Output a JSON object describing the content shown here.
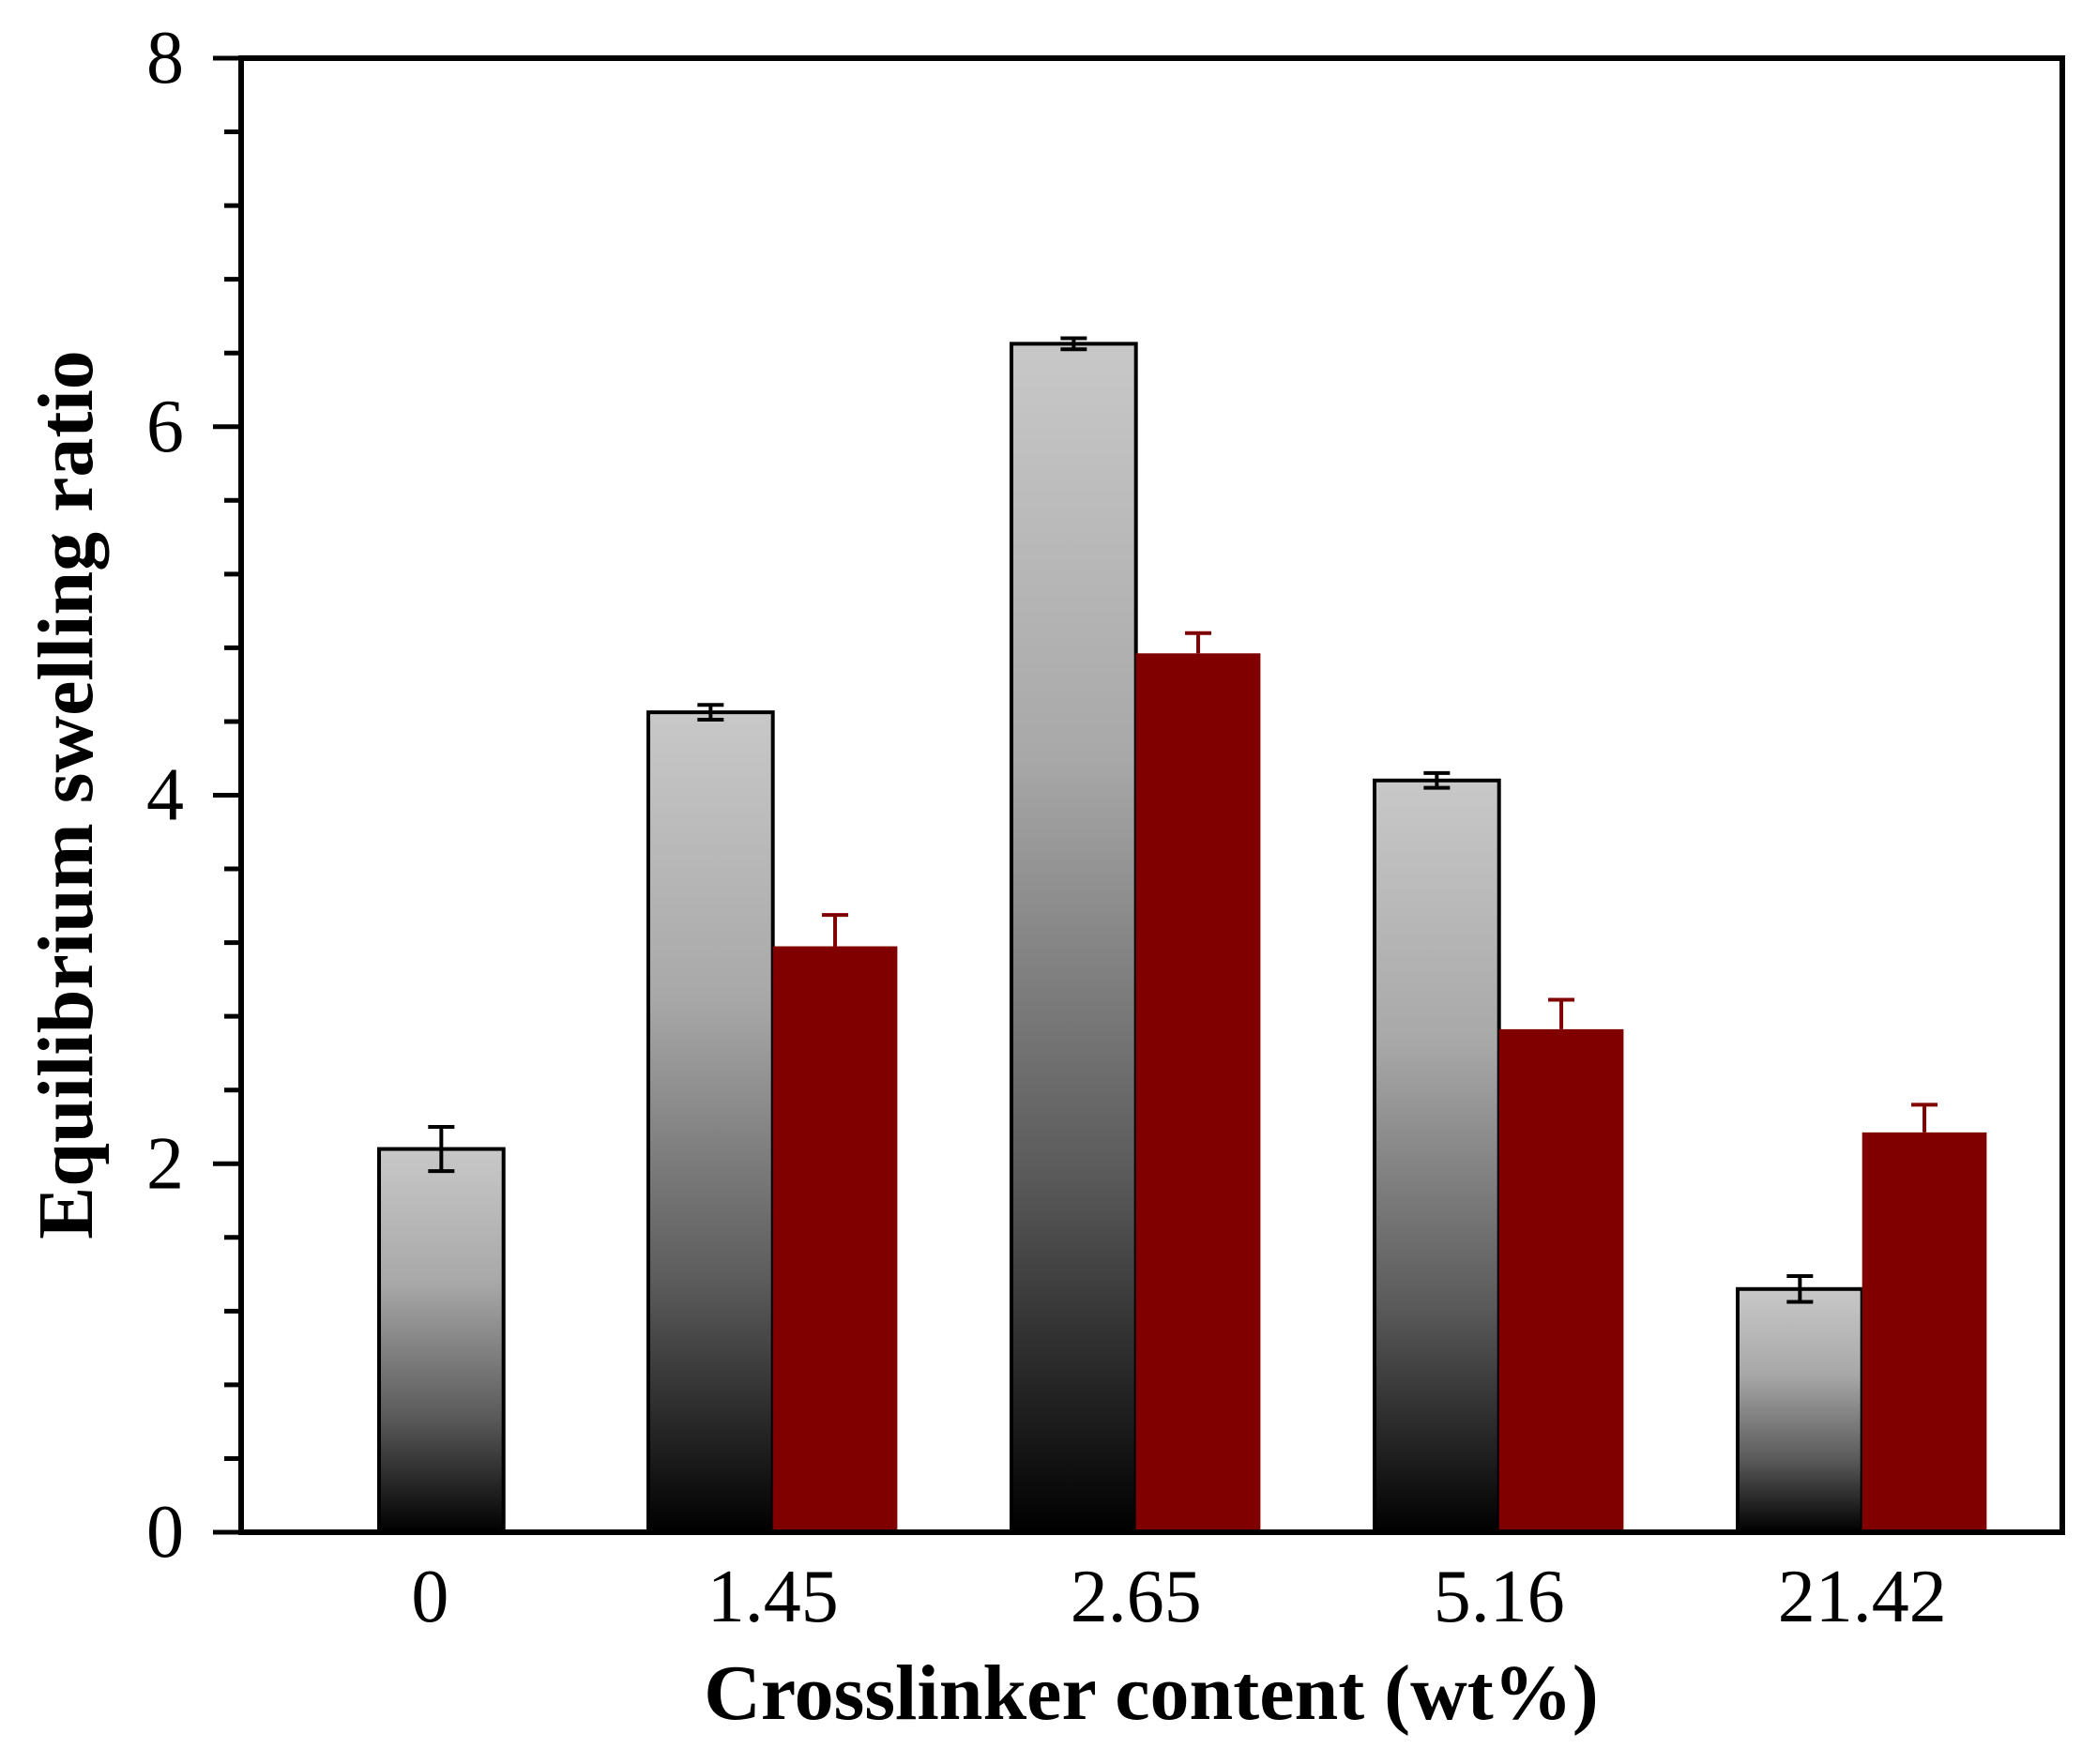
{
  "chart_data": {
    "type": "bar",
    "title": "",
    "xlabel": "Crosslinker content (wt%)",
    "ylabel": "Equilibrium swelling ratio",
    "categories": [
      "0",
      "1.45",
      "2.65",
      "5.16",
      "21.42"
    ],
    "ylim": [
      0,
      8
    ],
    "yticks": [
      "0",
      "2",
      "4",
      "6",
      "8"
    ],
    "ytick_values": [
      0,
      2,
      4,
      6,
      8
    ],
    "minor_tick_step": 0.4,
    "grid": false,
    "legend": "none",
    "series": [
      {
        "fill": "gradient-gray",
        "color_top": "#c8c8c8",
        "color_bottom": "#000000",
        "values": [
          2.08,
          4.45,
          6.45,
          4.08,
          1.32
        ],
        "errors": [
          0.12,
          0.04,
          0.03,
          0.04,
          0.07
        ],
        "error_color": "#000000"
      },
      {
        "fill": "solid",
        "color": "#800000",
        "values": [
          null,
          3.18,
          4.77,
          2.73,
          2.17
        ],
        "errors": [
          null,
          0.17,
          0.11,
          0.16,
          0.15
        ],
        "error_color": "#800000"
      }
    ]
  }
}
